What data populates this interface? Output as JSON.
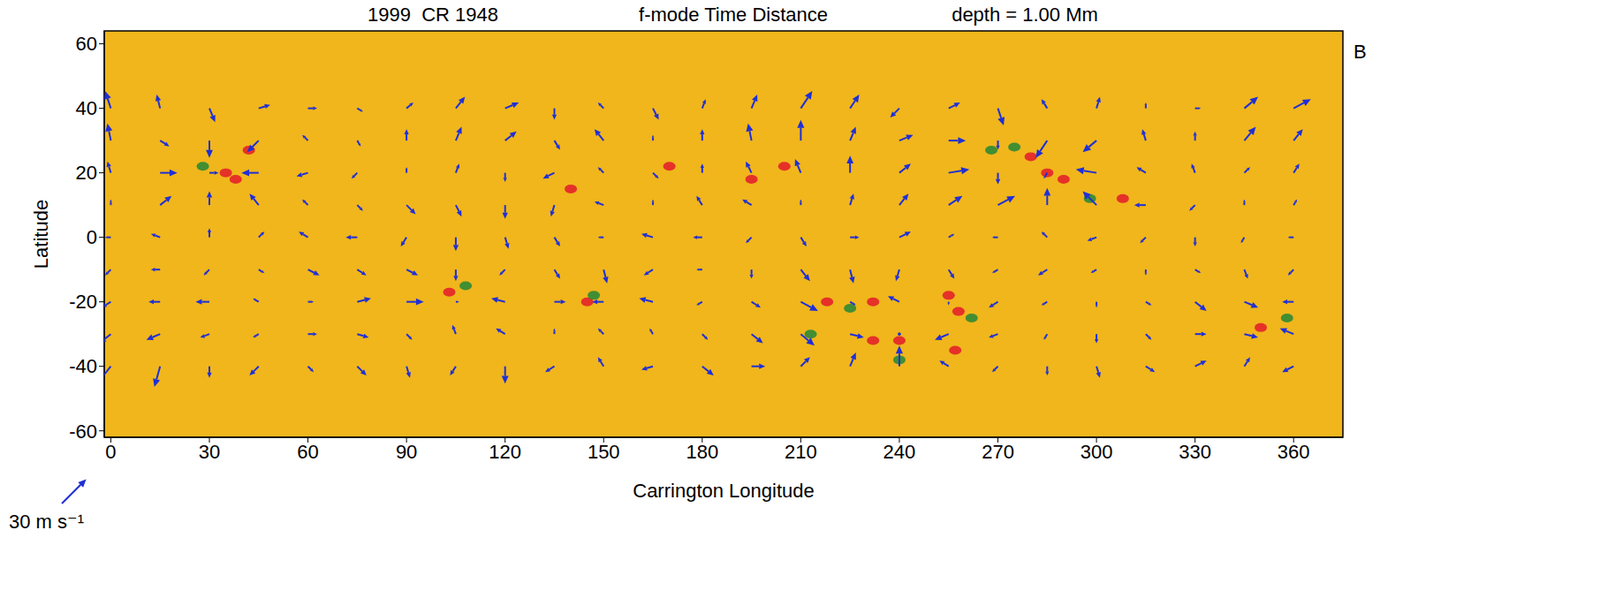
{
  "chart_data": {
    "type": "quiver",
    "title": [
      "1999  CR 1948",
      "f-mode Time Distance",
      "depth = 1.00 Mm"
    ],
    "x_label": "Carrington Longitude",
    "y_label": "Latitude",
    "xlim": [
      -2,
      375
    ],
    "ylim": [
      -62,
      64
    ],
    "xticks": [
      0,
      30,
      60,
      90,
      120,
      150,
      180,
      210,
      240,
      270,
      300,
      330,
      360
    ],
    "yticks": [
      -60,
      -40,
      -20,
      0,
      20,
      40,
      60
    ],
    "color": "#1f2fd6",
    "annotation": "B",
    "scale": {
      "value": 30,
      "label": "30 m s⁻¹"
    },
    "vectors": {
      "lon": [
        0,
        15,
        30,
        45,
        60,
        75,
        90,
        105,
        120,
        135,
        150,
        165,
        180,
        195,
        210,
        225,
        240,
        255,
        270,
        285,
        300,
        315,
        330,
        345,
        360
      ],
      "lat": [
        40,
        30,
        20,
        10,
        0,
        -10,
        -20,
        -30,
        -40
      ],
      "u": [
        [
          -5,
          -3,
          5,
          10,
          8,
          5,
          6,
          8,
          12,
          0,
          -5,
          5,
          3,
          5,
          10,
          8,
          -8,
          10,
          5,
          -5,
          3,
          0,
          5,
          12,
          15
        ],
        [
          -3,
          8,
          0,
          -10,
          -5,
          3,
          0,
          5,
          10,
          5,
          -8,
          0,
          0,
          -3,
          0,
          5,
          12,
          15,
          0,
          -10,
          -12,
          -3,
          0,
          10,
          8
        ],
        [
          -3,
          15,
          8,
          -15,
          -10,
          -5,
          0,
          3,
          0,
          -10,
          -5,
          5,
          0,
          -5,
          -5,
          0,
          10,
          18,
          0,
          -3,
          -18,
          -8,
          -3,
          5,
          5
        ],
        [
          0,
          10,
          0,
          -8,
          -5,
          5,
          8,
          5,
          0,
          -3,
          -8,
          0,
          -5,
          -8,
          0,
          3,
          8,
          12,
          15,
          0,
          -12,
          -10,
          -5,
          0,
          3
        ],
        [
          -5,
          -8,
          0,
          5,
          -8,
          -10,
          -5,
          0,
          3,
          5,
          -5,
          -10,
          -8,
          -5,
          5,
          8,
          10,
          5,
          -5,
          -5,
          -8,
          -5,
          0,
          -3,
          -5
        ],
        [
          -5,
          -8,
          -5,
          5,
          10,
          8,
          10,
          0,
          -5,
          5,
          3,
          -8,
          -5,
          0,
          8,
          3,
          -3,
          5,
          -5,
          -8,
          -5,
          0,
          5,
          3,
          -5
        ],
        [
          -8,
          -10,
          -12,
          -5,
          5,
          12,
          15,
          3,
          -12,
          10,
          -10,
          -12,
          -5,
          8,
          15,
          5,
          -10,
          0,
          -8,
          -5,
          0,
          5,
          10,
          12,
          -10
        ],
        [
          -10,
          -12,
          -8,
          -5,
          8,
          10,
          5,
          -3,
          -8,
          0,
          -5,
          -3,
          5,
          10,
          12,
          12,
          0,
          -12,
          -8,
          -3,
          0,
          5,
          10,
          12,
          -12
        ],
        [
          -12,
          -5,
          0,
          -8,
          5,
          8,
          3,
          -5,
          0,
          -8,
          -5,
          -10,
          10,
          12,
          8,
          5,
          0,
          -8,
          -5,
          0,
          3,
          8,
          10,
          5,
          -10
        ]
      ],
      "v": [
        [
          15,
          12,
          -12,
          3,
          0,
          -3,
          5,
          10,
          5,
          -10,
          5,
          -10,
          8,
          12,
          15,
          12,
          -8,
          5,
          -15,
          8,
          10,
          5,
          0,
          10,
          8
        ],
        [
          15,
          -5,
          -15,
          -10,
          5,
          -5,
          10,
          12,
          8,
          -8,
          10,
          5,
          10,
          15,
          18,
          12,
          5,
          0,
          -8,
          -15,
          -10,
          10,
          8,
          12,
          10
        ],
        [
          10,
          0,
          0,
          0,
          -3,
          -5,
          5,
          8,
          -8,
          -5,
          5,
          -5,
          8,
          10,
          12,
          15,
          8,
          3,
          -10,
          -5,
          3,
          5,
          8,
          5,
          8
        ],
        [
          5,
          8,
          12,
          10,
          5,
          -5,
          -8,
          -10,
          -12,
          -10,
          3,
          5,
          8,
          5,
          5,
          10,
          10,
          8,
          8,
          15,
          12,
          0,
          -5,
          5,
          5
        ],
        [
          0,
          3,
          8,
          5,
          5,
          0,
          -8,
          -12,
          -10,
          -8,
          0,
          3,
          0,
          -5,
          -8,
          0,
          5,
          3,
          0,
          5,
          -3,
          -5,
          -8,
          -5,
          0
        ],
        [
          -5,
          0,
          -5,
          -3,
          -5,
          -5,
          -5,
          -10,
          -5,
          -8,
          -12,
          -5,
          0,
          -8,
          -10,
          -12,
          -10,
          -8,
          -3,
          -5,
          -3,
          -5,
          -3,
          -8,
          -5
        ],
        [
          -5,
          0,
          0,
          3,
          0,
          3,
          0,
          0,
          3,
          0,
          0,
          3,
          -3,
          -5,
          -8,
          -3,
          5,
          -3,
          -5,
          -3,
          -5,
          -3,
          -8,
          -5,
          0
        ],
        [
          -8,
          -5,
          -3,
          -3,
          0,
          -3,
          -5,
          8,
          5,
          5,
          5,
          5,
          -5,
          -8,
          -10,
          -3,
          0,
          -5,
          -3,
          -5,
          -8,
          -5,
          0,
          -3,
          5
        ],
        [
          -15,
          -18,
          -10,
          -8,
          -5,
          -8,
          -10,
          -8,
          -15,
          -5,
          8,
          -3,
          -8,
          0,
          8,
          12,
          18,
          5,
          -5,
          -8,
          -10,
          -5,
          5,
          8,
          -5
        ]
      ]
    },
    "patches": [
      {
        "color": "#e3222a",
        "points": [
          [
            35,
            20
          ],
          [
            38,
            18
          ],
          [
            42,
            27
          ],
          [
            103,
            -17
          ],
          [
            145,
            -20
          ],
          [
            140,
            15
          ],
          [
            170,
            22
          ],
          [
            195,
            18
          ],
          [
            205,
            22
          ],
          [
            218,
            -20
          ],
          [
            232,
            -20
          ],
          [
            232,
            -32
          ],
          [
            240,
            -32
          ],
          [
            255,
            -18
          ],
          [
            257,
            -35
          ],
          [
            258,
            -23
          ],
          [
            280,
            25
          ],
          [
            285,
            20
          ],
          [
            290,
            18
          ],
          [
            308,
            12
          ],
          [
            350,
            -28
          ]
        ]
      },
      {
        "color": "#2f8a35",
        "points": [
          [
            28,
            22
          ],
          [
            108,
            -15
          ],
          [
            147,
            -18
          ],
          [
            213,
            -30
          ],
          [
            225,
            -22
          ],
          [
            240,
            -38
          ],
          [
            262,
            -25
          ],
          [
            268,
            27
          ],
          [
            275,
            28
          ],
          [
            298,
            12
          ],
          [
            358,
            -25
          ]
        ]
      }
    ]
  }
}
